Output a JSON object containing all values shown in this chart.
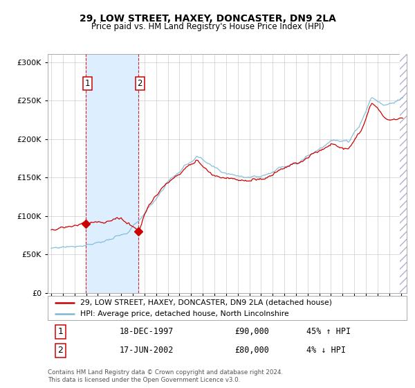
{
  "title": "29, LOW STREET, HAXEY, DONCASTER, DN9 2LA",
  "subtitle": "Price paid vs. HM Land Registry's House Price Index (HPI)",
  "legend_line1": "29, LOW STREET, HAXEY, DONCASTER, DN9 2LA (detached house)",
  "legend_line2": "HPI: Average price, detached house, North Lincolnshire",
  "transaction1_date": "18-DEC-1997",
  "transaction1_price": "£90,000",
  "transaction1_hpi": "45% ↑ HPI",
  "transaction1_x": 1997.96,
  "transaction1_y": 90000,
  "transaction2_date": "17-JUN-2002",
  "transaction2_price": "£80,000",
  "transaction2_hpi": "4% ↓ HPI",
  "transaction2_x": 2002.46,
  "transaction2_y": 80000,
  "hpi_color": "#7ab8d9",
  "price_color": "#cc0000",
  "shade_color": "#ddeeff",
  "marker_color": "#cc0000",
  "vline_color": "#cc0000",
  "ylim": [
    0,
    310000
  ],
  "yticks": [
    0,
    50000,
    100000,
    150000,
    200000,
    250000,
    300000
  ],
  "xlim_start": 1994.7,
  "xlim_end": 2025.5,
  "footer": "Contains HM Land Registry data © Crown copyright and database right 2024.\nThis data is licensed under the Open Government Licence v3.0.",
  "bg_color": "#ffffff",
  "grid_color": "#cccccc"
}
